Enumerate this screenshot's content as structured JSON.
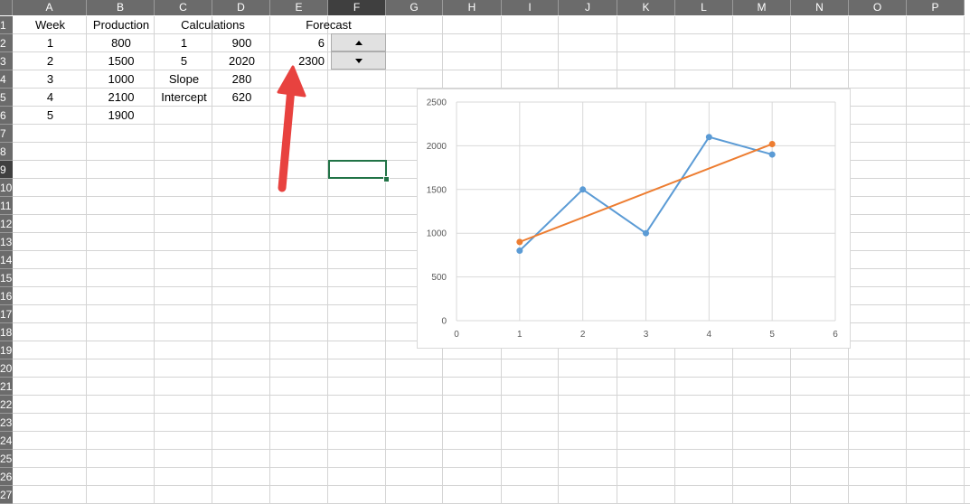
{
  "columns": [
    "A",
    "B",
    "C",
    "D",
    "E",
    "F",
    "G",
    "H",
    "I",
    "J",
    "K",
    "L",
    "M",
    "N",
    "O",
    "P"
  ],
  "selected_column": "F",
  "rows": [
    "1",
    "2",
    "3",
    "4",
    "5",
    "6",
    "7",
    "8",
    "9",
    "10",
    "11",
    "12",
    "13",
    "14",
    "15",
    "16",
    "17",
    "18",
    "19",
    "20",
    "21",
    "22",
    "23",
    "24",
    "25",
    "26",
    "27"
  ],
  "selected_row": "9",
  "cells": {
    "A1": "Week",
    "B1": "Production",
    "C1": "Calculations",
    "E1": "Forecast",
    "A2": "1",
    "B2": "800",
    "C2": "1",
    "D2": "900",
    "E2": "6",
    "A3": "2",
    "B3": "1500",
    "C3": "5",
    "D3": "2020",
    "E3": "2300",
    "A4": "3",
    "B4": "1000",
    "C4": "Slope",
    "D4": "280",
    "A5": "4",
    "B5": "2100",
    "C5": "Intercept",
    "D5": "620",
    "A6": "5",
    "B6": "1900"
  },
  "spin_buttons": {
    "up_icon": "triangle-up-icon",
    "down_icon": "triangle-down-icon"
  },
  "annotation": {
    "icon": "red-arrow-icon",
    "color": "#e8423f"
  },
  "colors": {
    "header": "#6b6b6b",
    "header_selected": "#3f3f3f",
    "selection": "#217346",
    "gridline": "#d4d4d4"
  },
  "chart_data": {
    "type": "line",
    "title": "",
    "xlabel": "",
    "ylabel": "",
    "xlim": [
      0,
      6
    ],
    "ylim": [
      0,
      2500
    ],
    "x_ticks": [
      "0",
      "1",
      "2",
      "3",
      "4",
      "5",
      "6"
    ],
    "y_ticks": [
      "0",
      "500",
      "1000",
      "1500",
      "2000",
      "2500"
    ],
    "grid": true,
    "series": [
      {
        "color": "#5b9bd5",
        "x": [
          1,
          2,
          3,
          4,
          5
        ],
        "y": [
          800,
          1500,
          1000,
          2100,
          1900
        ]
      },
      {
        "color": "#ed7d31",
        "x": [
          1,
          5
        ],
        "y": [
          900,
          2020
        ]
      }
    ]
  }
}
